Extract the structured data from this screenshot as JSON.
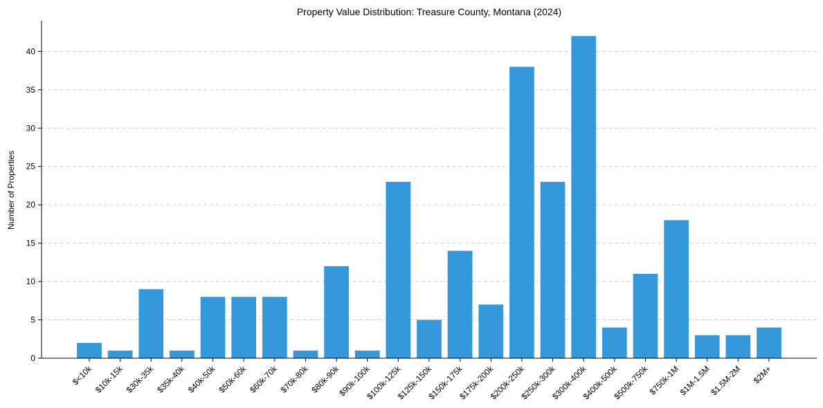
{
  "chart_data": {
    "type": "bar",
    "title": "Property Value Distribution: Treasure County, Montana (2024)",
    "xlabel": "",
    "ylabel": "Number of Properties",
    "categories": [
      "$<10k",
      "$10k-15k",
      "$30k-35k",
      "$35k-40k",
      "$40k-50k",
      "$50k-60k",
      "$60k-70k",
      "$70k-80k",
      "$80k-90k",
      "$90k-100k",
      "$100k-125k",
      "$125k-150k",
      "$150k-175k",
      "$175k-200k",
      "$200k-250k",
      "$250k-300k",
      "$300k-400k",
      "$400k-500k",
      "$500k-750k",
      "$750k-1M",
      "$1M-1.5M",
      "$1.5M-2M",
      "$2M+"
    ],
    "values": [
      2,
      1,
      9,
      1,
      8,
      8,
      8,
      1,
      12,
      1,
      23,
      5,
      14,
      7,
      38,
      23,
      42,
      4,
      11,
      18,
      3,
      3,
      4
    ],
    "ylim": [
      0,
      44
    ],
    "yticks": [
      0,
      5,
      10,
      15,
      20,
      25,
      30,
      35,
      40
    ],
    "grid": "horizontal-dashed",
    "bar_color": "#3498db"
  }
}
